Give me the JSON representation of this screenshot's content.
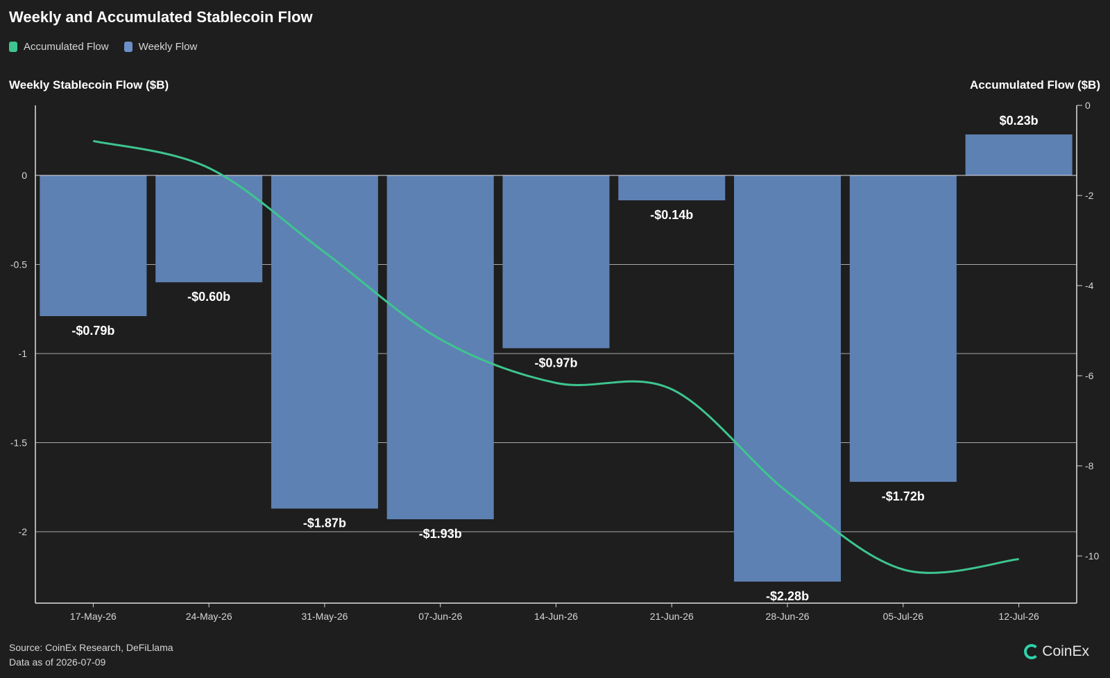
{
  "header": {
    "title": "Weekly and Accumulated Stablecoin Flow"
  },
  "legend": [
    {
      "label": "Accumulated Flow",
      "color": "#3ec58f"
    },
    {
      "label": "Weekly Flow",
      "color": "#6b8fc6"
    }
  ],
  "axes": {
    "left_title": "Weekly Stablecoin Flow ($B)",
    "right_title": "Accumulated Flow ($B)"
  },
  "footer": {
    "source": "Source: CoinEx Research, DeFiLlama",
    "as_of": "Data as of 2026-07-09"
  },
  "brand": {
    "name": "CoinEx",
    "color": "#2fd2a8"
  },
  "chart_data": {
    "type": "bar",
    "categories": [
      "17-May-26",
      "24-May-26",
      "31-May-26",
      "07-Jun-26",
      "14-Jun-26",
      "21-Jun-26",
      "28-Jun-26",
      "05-Jul-26",
      "12-Jul-26"
    ],
    "series": [
      {
        "name": "Weekly Flow",
        "type": "bar",
        "axis": "left",
        "color": "#5e81b3",
        "values": [
          -0.79,
          -0.6,
          -1.87,
          -1.93,
          -0.97,
          -0.14,
          -2.28,
          -1.72,
          0.23
        ],
        "labels": [
          "-$0.79b",
          "-$0.60b",
          "-$1.87b",
          "-$1.93b",
          "-$0.97b",
          "-$0.14b",
          "-$2.28b",
          "-$1.72b",
          "$0.23b"
        ]
      },
      {
        "name": "Accumulated Flow",
        "type": "line",
        "axis": "right",
        "color": "#3ec58f",
        "values": [
          -0.79,
          -1.39,
          -3.26,
          -5.19,
          -6.16,
          -6.3,
          -8.58,
          -10.3,
          -10.07
        ]
      }
    ],
    "left_axis": {
      "ylim": [
        -2.4,
        0.4
      ],
      "ticks": [
        0,
        -0.5,
        -1,
        -1.5,
        -2
      ],
      "tick_labels": [
        "0",
        "-0.5",
        "-1",
        "-1.5",
        "-2"
      ]
    },
    "right_axis": {
      "ylim": [
        -11,
        0
      ],
      "ticks": [
        0,
        -2,
        -4,
        -6,
        -8,
        -10
      ],
      "tick_labels": [
        "0",
        "-2",
        "-4",
        "-6",
        "-8",
        "-10"
      ]
    },
    "grid": true
  }
}
